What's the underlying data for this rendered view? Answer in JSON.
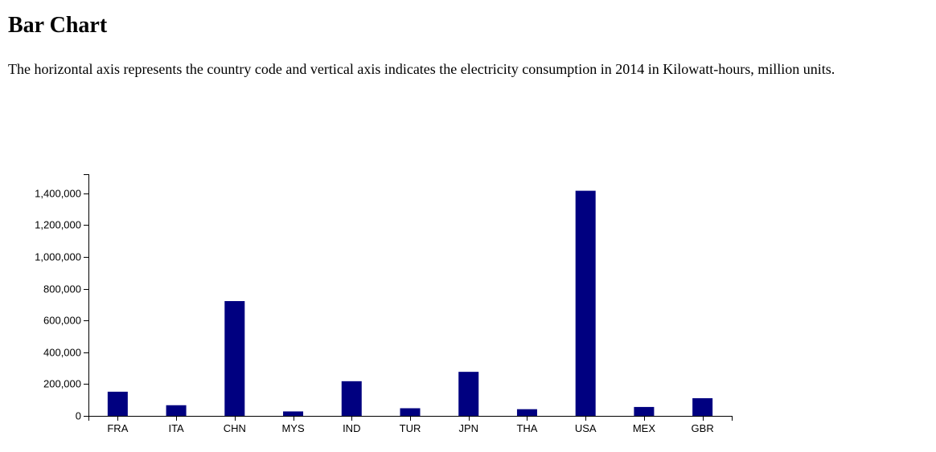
{
  "page": {
    "title": "Bar Chart",
    "description": "The horizontal axis represents the country code and vertical axis indicates the electricity consumption in 2014 in Kilowatt-hours, million units."
  },
  "chart_data": {
    "type": "bar",
    "categories": [
      "FRA",
      "ITA",
      "CHN",
      "MYS",
      "IND",
      "TUR",
      "JPN",
      "THA",
      "USA",
      "MEX",
      "GBR"
    ],
    "values": [
      152000,
      67000,
      722000,
      28000,
      218000,
      48000,
      277000,
      42000,
      1416000,
      56000,
      111000
    ],
    "bar_color": "#000080",
    "y_ticks": [
      0,
      200000,
      400000,
      600000,
      800000,
      1000000,
      1200000,
      1400000
    ],
    "ylim": [
      0,
      1520000
    ],
    "grid": false,
    "legend": "none",
    "xlabel": "",
    "ylabel": ""
  }
}
